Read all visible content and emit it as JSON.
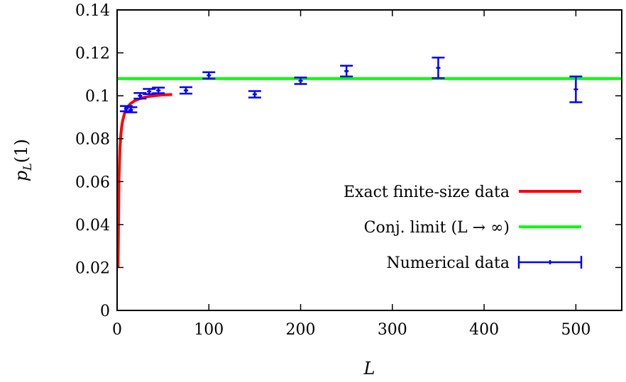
{
  "chart_data": {
    "type": "line",
    "title": "",
    "xlabel": "L",
    "ylabel_main": "p",
    "ylabel_sub": "L",
    "ylabel_suffix": "(1)",
    "xlim": [
      0,
      550
    ],
    "ylim": [
      0,
      0.14
    ],
    "xticks": [
      0,
      100,
      200,
      300,
      400,
      500
    ],
    "xtick_labels": [
      "0",
      "100",
      "200",
      "300",
      "400",
      "500"
    ],
    "yticks": [
      0,
      0.02,
      0.04,
      0.06,
      0.08,
      0.1,
      0.12,
      0.14
    ],
    "ytick_labels": [
      "0",
      "0.02",
      "0.04",
      "0.06",
      "0.08",
      "0.1",
      "0.12",
      "0.14"
    ],
    "grid": false,
    "legend_position": "bottom-right",
    "series": [
      {
        "name": "Exact finite-size data",
        "kind": "line",
        "color": "#ff0000",
        "x": [
          1,
          2,
          3,
          4,
          5,
          6,
          8,
          10,
          12,
          15,
          20,
          25,
          30,
          35,
          40,
          45,
          50,
          55,
          60
        ],
        "y": [
          0.02,
          0.061,
          0.0747,
          0.0815,
          0.0856,
          0.0883,
          0.0917,
          0.0938,
          0.0951,
          0.0965,
          0.0979,
          0.0987,
          0.0993,
          0.0997,
          0.1,
          0.1002,
          0.1004,
          0.1005,
          0.1006
        ]
      },
      {
        "name": "Conj. limit (L → ∞)",
        "kind": "line",
        "color": "#00ff00",
        "x": [
          0,
          550
        ],
        "y": [
          0.108,
          0.108
        ]
      },
      {
        "name": "Numerical data",
        "kind": "errorbar",
        "color": "#0000ff",
        "points": [
          {
            "x": 10,
            "y": 0.094,
            "err": 0.0012
          },
          {
            "x": 15,
            "y": 0.0935,
            "err": 0.0012
          },
          {
            "x": 25,
            "y": 0.1,
            "err": 0.0013
          },
          {
            "x": 35,
            "y": 0.102,
            "err": 0.0012
          },
          {
            "x": 45,
            "y": 0.1025,
            "err": 0.0013
          },
          {
            "x": 75,
            "y": 0.1025,
            "err": 0.0015
          },
          {
            "x": 100,
            "y": 0.1095,
            "err": 0.0015
          },
          {
            "x": 150,
            "y": 0.1007,
            "err": 0.0015
          },
          {
            "x": 200,
            "y": 0.107,
            "err": 0.0015
          },
          {
            "x": 250,
            "y": 0.1115,
            "err": 0.0025
          },
          {
            "x": 350,
            "y": 0.113,
            "err": 0.0048
          },
          {
            "x": 500,
            "y": 0.103,
            "err": 0.006
          }
        ]
      }
    ]
  }
}
